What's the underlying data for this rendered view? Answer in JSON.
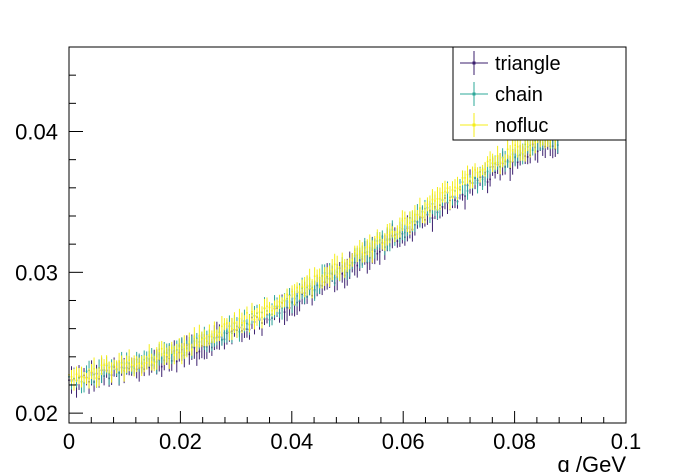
{
  "chart_data": {
    "type": "scatter",
    "title": "",
    "xlabel": "q /GeV",
    "ylabel": "",
    "xlim": [
      0,
      0.1
    ],
    "ylim": [
      0.0193,
      0.046
    ],
    "x_ticks": [
      {
        "value": 0,
        "label": "0"
      },
      {
        "value": 0.02,
        "label": "0.02"
      },
      {
        "value": 0.04,
        "label": "0.04"
      },
      {
        "value": 0.06,
        "label": "0.06"
      },
      {
        "value": 0.08,
        "label": "0.08"
      },
      {
        "value": 0.1,
        "label": "0.1"
      }
    ],
    "y_ticks": [
      {
        "value": 0.02,
        "label": "0.02"
      },
      {
        "value": 0.03,
        "label": "0.03"
      },
      {
        "value": 0.04,
        "label": "0.04"
      }
    ],
    "grid": false,
    "legend_position": "top-right",
    "error_bars": true,
    "series": [
      {
        "name": "triangle",
        "color": "#3b1f6e",
        "x": [
          0.0,
          0.005,
          0.01,
          0.015,
          0.02,
          0.025,
          0.03,
          0.035,
          0.04,
          0.045,
          0.05,
          0.055,
          0.06,
          0.065,
          0.07,
          0.075,
          0.08,
          0.085
        ],
        "y": [
          0.0222,
          0.0226,
          0.023,
          0.0235,
          0.0242,
          0.025,
          0.0258,
          0.0268,
          0.0278,
          0.029,
          0.0302,
          0.0315,
          0.0328,
          0.0342,
          0.0355,
          0.0368,
          0.038,
          0.0392
        ],
        "yerr": 0.0007
      },
      {
        "name": "chain",
        "color": "#2ea89a",
        "x": [
          0.0,
          0.005,
          0.01,
          0.015,
          0.02,
          0.025,
          0.03,
          0.035,
          0.04,
          0.045,
          0.05,
          0.055,
          0.06,
          0.065,
          0.07,
          0.075,
          0.08,
          0.085
        ],
        "y": [
          0.0224,
          0.0228,
          0.0232,
          0.0237,
          0.0244,
          0.0252,
          0.0261,
          0.0271,
          0.0282,
          0.0293,
          0.0305,
          0.0318,
          0.0331,
          0.0345,
          0.0358,
          0.0371,
          0.0383,
          0.0394
        ],
        "yerr": 0.0006
      },
      {
        "name": "nofluc",
        "color": "#f5ee18",
        "x": [
          0.0,
          0.005,
          0.01,
          0.015,
          0.02,
          0.025,
          0.03,
          0.035,
          0.04,
          0.045,
          0.05,
          0.055,
          0.06,
          0.065,
          0.07,
          0.075,
          0.08,
          0.085
        ],
        "y": [
          0.0225,
          0.0229,
          0.0234,
          0.0239,
          0.0246,
          0.0254,
          0.0263,
          0.0273,
          0.0284,
          0.0295,
          0.0307,
          0.032,
          0.0334,
          0.0348,
          0.0361,
          0.0374,
          0.0386,
          0.0397
        ],
        "yerr": 0.0006
      }
    ]
  }
}
